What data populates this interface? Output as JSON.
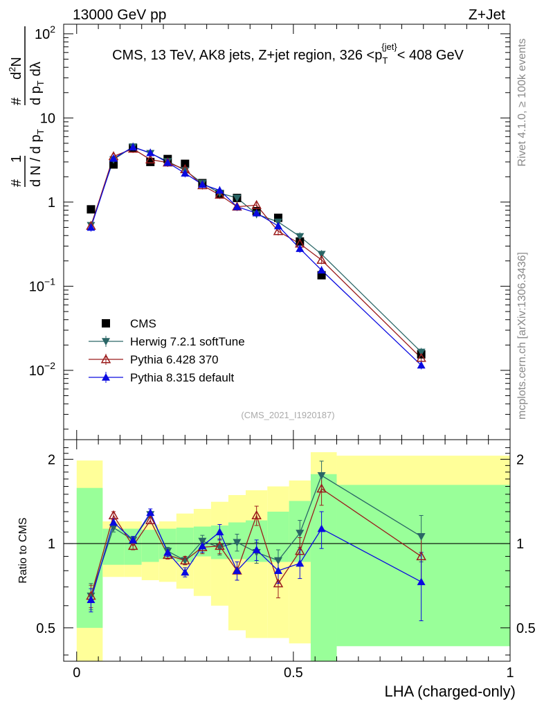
{
  "header": {
    "energy_label": "13000 GeV pp",
    "process_label": "Z+Jet"
  },
  "side_labels": {
    "rivet": "Rivet 4.1.0, ≥ 100k events",
    "source": "mcplots.cern.ch [arXiv:1306.3436]"
  },
  "watermark": "(CMS_2021_I1920187)",
  "colors": {
    "cms": "#000000",
    "herwig": "#2a6666",
    "pythia6": "#9b1b1b",
    "pythia8": "#0a0ae0",
    "band_inner": "#99ff99",
    "band_outer": "#ffff99"
  },
  "chart_data": [
    {
      "type": "scatter",
      "title": "CMS, 13 TeV, AK8 jets, Z+jet region, 326 <p_T^{jet}< 408 GeV",
      "title_parts": {
        "pre": "CMS, 13 TeV, AK8 jets, Z+jet region, 326 <p",
        "sub": "T",
        "sup": "{jet}",
        "post": "< 408 GeV"
      },
      "xlabel": "LHA (charged-only)",
      "ylabel": "# 1 / d N / d p_T # d^2N / d p_T dλ",
      "ylabel_parts": {
        "a": "#",
        "b": "1",
        "c": "d N / d p",
        "d": "T",
        "e": "#",
        "f": "d",
        "g": "2",
        "h": "N",
        "i": "d p",
        "j": "T",
        "k": "dλ"
      },
      "yscale": "log",
      "xlim": [
        -0.03,
        1.0
      ],
      "ylim": [
        0.0015,
        130
      ],
      "yticks": [
        {
          "value": 100,
          "base": "10",
          "exp": "2"
        },
        {
          "value": 10,
          "base": "10",
          "exp": ""
        },
        {
          "value": 1,
          "base": "1",
          "exp": ""
        },
        {
          "value": 0.1,
          "base": "10",
          "exp": "−1"
        },
        {
          "value": 0.01,
          "base": "10",
          "exp": "−2"
        }
      ],
      "legend_position": "center-left",
      "series": [
        {
          "name": "CMS",
          "key": "cms",
          "marker": "square",
          "x": [
            0.033,
            0.085,
            0.13,
            0.17,
            0.21,
            0.25,
            0.29,
            0.33,
            0.37,
            0.415,
            0.465,
            0.515,
            0.565,
            0.795
          ],
          "y": [
            0.82,
            2.8,
            4.4,
            3.0,
            3.25,
            2.85,
            1.68,
            1.25,
            1.12,
            0.78,
            0.65,
            0.34,
            0.135,
            0.0155
          ]
        },
        {
          "name": "Herwig 7.2.1 softTune",
          "key": "herwig",
          "marker": "triangle-down",
          "x": [
            0.033,
            0.085,
            0.13,
            0.17,
            0.21,
            0.25,
            0.29,
            0.33,
            0.37,
            0.415,
            0.465,
            0.515,
            0.565,
            0.795
          ],
          "y": [
            0.53,
            3.2,
            4.55,
            3.8,
            3.05,
            2.38,
            1.68,
            1.28,
            1.12,
            0.72,
            0.58,
            0.39,
            0.24,
            0.0165
          ]
        },
        {
          "name": "Pythia 6.428 370",
          "key": "pythia6",
          "marker": "triangle-up-open",
          "x": [
            0.033,
            0.085,
            0.13,
            0.17,
            0.21,
            0.25,
            0.29,
            0.33,
            0.37,
            0.415,
            0.465,
            0.515,
            0.565,
            0.795
          ],
          "y": [
            0.52,
            3.5,
            4.3,
            3.2,
            2.95,
            2.45,
            1.58,
            1.22,
            0.88,
            0.92,
            0.45,
            0.32,
            0.205,
            0.014
          ]
        },
        {
          "name": "Pythia 8.315 default",
          "key": "pythia8",
          "marker": "triangle-up",
          "x": [
            0.033,
            0.085,
            0.13,
            0.17,
            0.21,
            0.25,
            0.29,
            0.33,
            0.37,
            0.415,
            0.465,
            0.515,
            0.565,
            0.795
          ],
          "y": [
            0.5,
            3.3,
            4.5,
            3.85,
            2.95,
            2.2,
            1.62,
            1.38,
            0.88,
            0.74,
            0.52,
            0.28,
            0.155,
            0.0115
          ]
        }
      ]
    },
    {
      "type": "line",
      "title": "",
      "xlabel": "LHA (charged-only)",
      "ylabel": "Ratio to CMS",
      "yscale": "log",
      "xlim": [
        -0.03,
        1.0
      ],
      "ylim": [
        0.38,
        2.35
      ],
      "xticks": [
        {
          "value": 0,
          "label": "0"
        },
        {
          "value": 0.5,
          "label": "0.5"
        },
        {
          "value": 1,
          "label": "1"
        }
      ],
      "yticks": [
        {
          "value": 0.5,
          "label": "0.5"
        },
        {
          "value": 1,
          "label": "1"
        },
        {
          "value": 2,
          "label": "2"
        }
      ],
      "reference_line": 1,
      "bin_edges": [
        0.0,
        0.06,
        0.11,
        0.15,
        0.19,
        0.23,
        0.27,
        0.31,
        0.35,
        0.39,
        0.44,
        0.49,
        0.54,
        0.6,
        1.0
      ],
      "band_inner": [
        [
          0.5,
          1.58
        ],
        [
          0.84,
          1.13
        ],
        [
          0.84,
          1.13
        ],
        [
          0.86,
          1.12
        ],
        [
          0.88,
          1.13
        ],
        [
          0.86,
          1.14
        ],
        [
          0.9,
          1.15
        ],
        [
          0.88,
          1.16
        ],
        [
          0.88,
          1.19
        ],
        [
          0.86,
          1.21
        ],
        [
          0.86,
          1.3
        ],
        [
          0.86,
          1.42
        ],
        [
          0.38,
          1.77
        ],
        [
          0.43,
          1.62
        ]
      ],
      "band_outer": [
        [
          0.38,
          1.98
        ],
        [
          0.76,
          1.2
        ],
        [
          0.76,
          1.2
        ],
        [
          0.74,
          1.17
        ],
        [
          0.73,
          1.2
        ],
        [
          0.69,
          1.28
        ],
        [
          0.65,
          1.33
        ],
        [
          0.6,
          1.41
        ],
        [
          0.49,
          1.49
        ],
        [
          0.46,
          1.55
        ],
        [
          0.46,
          1.6
        ],
        [
          0.44,
          1.68
        ],
        [
          0.38,
          2.12
        ],
        [
          0.46,
          2.06
        ]
      ],
      "series": [
        {
          "name": "Herwig 7.2.1 softTune",
          "key": "herwig",
          "marker": "triangle-down",
          "x": [
            0.033,
            0.085,
            0.13,
            0.17,
            0.21,
            0.25,
            0.29,
            0.33,
            0.37,
            0.415,
            0.465,
            0.515,
            0.565,
            0.795
          ],
          "y": [
            0.65,
            1.14,
            1.03,
            1.27,
            0.94,
            0.87,
            1.02,
            0.97,
            1.01,
            0.93,
            0.87,
            1.09,
            1.75,
            1.06
          ],
          "err": [
            0.07,
            0.04,
            0.03,
            0.03,
            0.03,
            0.03,
            0.05,
            0.06,
            0.07,
            0.08,
            0.08,
            0.12,
            0.22,
            0.2
          ]
        },
        {
          "name": "Pythia 6.428 370",
          "key": "pythia6",
          "marker": "triangle-up-open",
          "x": [
            0.033,
            0.085,
            0.13,
            0.17,
            0.21,
            0.25,
            0.29,
            0.33,
            0.37,
            0.415,
            0.465,
            0.515,
            0.565,
            0.795
          ],
          "y": [
            0.65,
            1.26,
            0.98,
            1.21,
            0.91,
            0.87,
            0.97,
            0.98,
            0.8,
            1.26,
            0.72,
            0.94,
            1.57,
            0.9
          ],
          "err": [
            0.06,
            0.04,
            0.03,
            0.03,
            0.03,
            0.03,
            0.05,
            0.06,
            0.06,
            0.1,
            0.08,
            0.11,
            0.2,
            0.18
          ]
        },
        {
          "name": "Pythia 8.315 default",
          "key": "pythia8",
          "marker": "triangle-up",
          "x": [
            0.033,
            0.085,
            0.13,
            0.17,
            0.21,
            0.25,
            0.29,
            0.33,
            0.37,
            0.415,
            0.465,
            0.515,
            0.565,
            0.795
          ],
          "y": [
            0.63,
            1.19,
            1.03,
            1.29,
            0.93,
            0.79,
            0.98,
            1.1,
            0.8,
            0.95,
            0.8,
            0.85,
            1.13,
            0.73
          ],
          "err": [
            0.06,
            0.04,
            0.03,
            0.04,
            0.03,
            0.03,
            0.05,
            0.07,
            0.06,
            0.08,
            0.08,
            0.1,
            0.17,
            0.2
          ]
        }
      ]
    }
  ]
}
